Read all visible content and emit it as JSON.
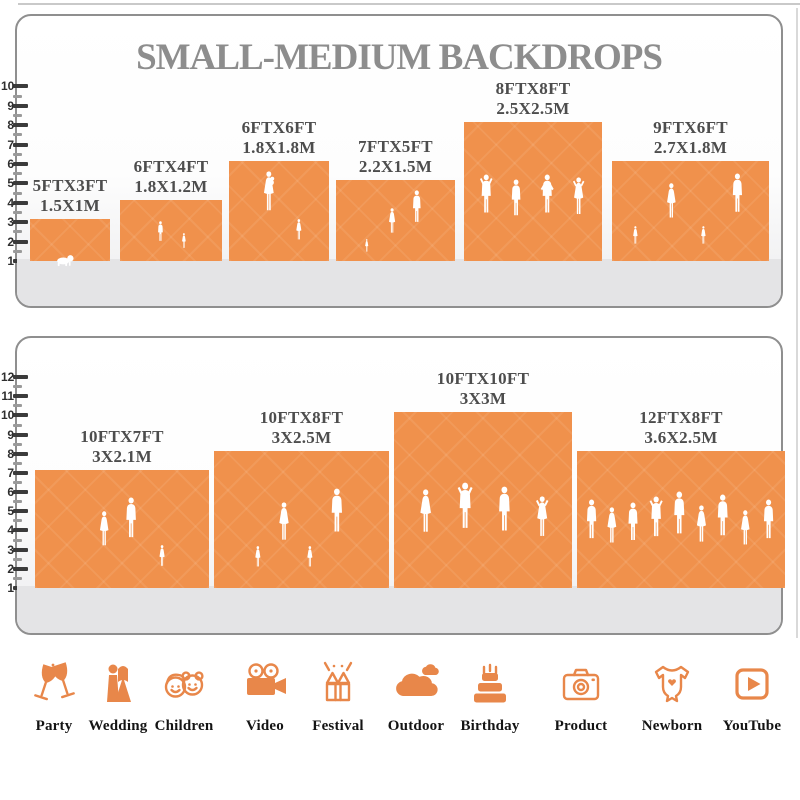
{
  "colors": {
    "backdrop_orange": "#F0914C",
    "icon_orange": "#E8874A",
    "title_gray": "#8D8D8D",
    "floor_gray": "#E4E4E6"
  },
  "panels": [
    {
      "name": "small-medium",
      "title": "SMALL-MEDIUM BACKDROPS",
      "ruler_values": [
        1,
        2,
        3,
        4,
        5,
        6,
        7,
        8,
        9,
        10
      ],
      "backdrops": [
        {
          "size_ft": "5FTX3FT",
          "size_m": "1.5X1M",
          "height_ft": 3,
          "figures": "crawling-baby"
        },
        {
          "size_ft": "6FTX4FT",
          "size_m": "1.8X1.2M",
          "height_ft": 4,
          "figures": "two-children"
        },
        {
          "size_ft": "6FTX6FT",
          "size_m": "1.8X1.8M",
          "height_ft": 6,
          "figures": "mother-baby-girl"
        },
        {
          "size_ft": "7FTX5FT",
          "size_m": "2.2X1.5M",
          "height_ft": 5,
          "figures": "toddler-woman-man"
        },
        {
          "size_ft": "8FTX8FT",
          "size_m": "2.5X2.5M",
          "height_ft": 8,
          "figures": "four-adults"
        },
        {
          "size_ft": "9FTX6FT",
          "size_m": "2.7X1.8M",
          "height_ft": 6,
          "figures": "family-four"
        }
      ]
    },
    {
      "name": "large",
      "title": "",
      "ruler_values": [
        1,
        2,
        3,
        4,
        5,
        6,
        7,
        8,
        9,
        10,
        11,
        12
      ],
      "backdrops": [
        {
          "size_ft": "10FTX7FT",
          "size_m": "3X2.1M",
          "height_ft": 7,
          "figures": "woman-man-girl"
        },
        {
          "size_ft": "10FTX8FT",
          "size_m": "3X2.5M",
          "height_ft": 8,
          "figures": "family-four-holding"
        },
        {
          "size_ft": "10FTX10FT",
          "size_m": "3X3M",
          "height_ft": 10,
          "figures": "four-adults-posing"
        },
        {
          "size_ft": "12FTX8FT",
          "size_m": "3.6X2.5M",
          "height_ft": 8,
          "figures": "crowd"
        }
      ]
    }
  ],
  "categories": [
    {
      "label": "Party",
      "icon": "party"
    },
    {
      "label": "Wedding",
      "icon": "wedding"
    },
    {
      "label": "Children",
      "icon": "children"
    },
    {
      "label": "Video",
      "icon": "video"
    },
    {
      "label": "Festival",
      "icon": "festival"
    },
    {
      "label": "Outdoor",
      "icon": "outdoor"
    },
    {
      "label": "Birthday",
      "icon": "birthday"
    },
    {
      "label": "Product",
      "icon": "product"
    },
    {
      "label": "Newborn",
      "icon": "newborn"
    },
    {
      "label": "YouTube",
      "icon": "youtube"
    }
  ]
}
